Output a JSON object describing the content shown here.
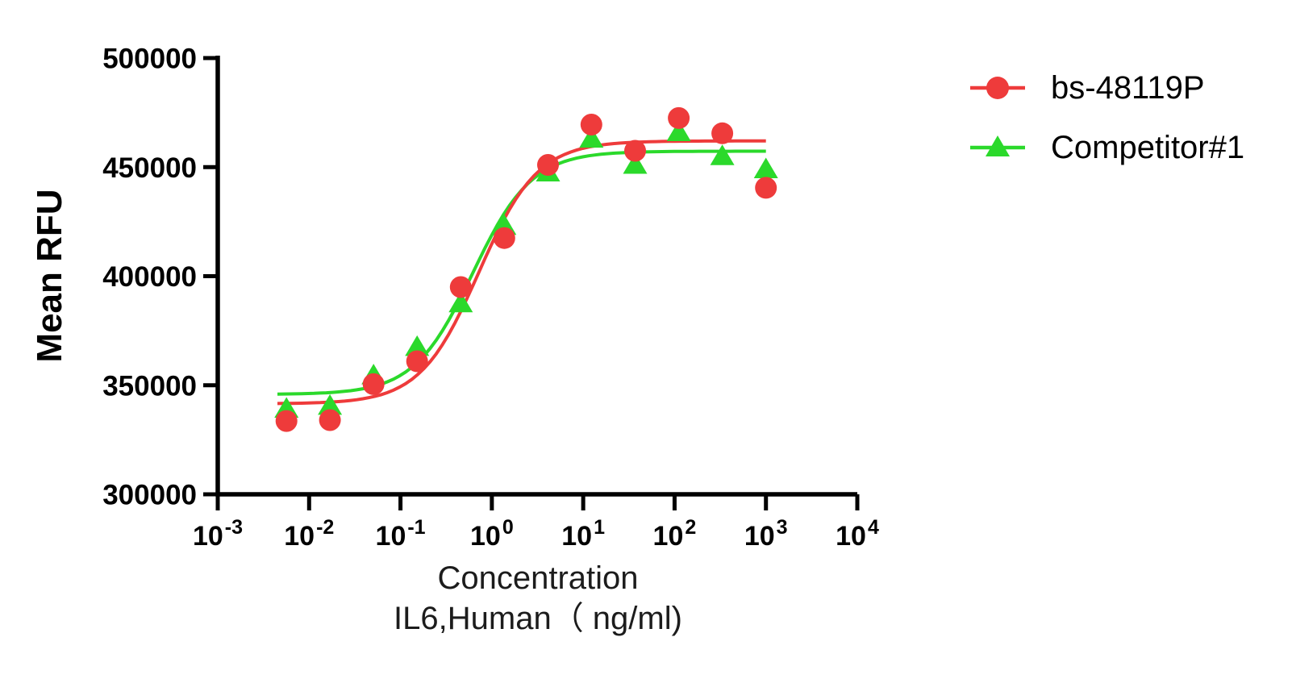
{
  "chart_data": {
    "type": "scatter",
    "title": "",
    "xlabel_line1": "Concentration",
    "xlabel_line2": "IL6,Human（ ng/ml)",
    "ylabel": "Mean RFU",
    "x_scale": "log10",
    "x_tick_exponents": [
      -3,
      -2,
      -1,
      0,
      1,
      2,
      3,
      4
    ],
    "y_ticks": [
      500000,
      450000,
      400000,
      350000,
      300000
    ],
    "ylim": [
      300000,
      500000
    ],
    "axis_color": "#000000",
    "grid": false,
    "legend_position": "right-top",
    "series": [
      {
        "name": "bs-48119P",
        "color": "#EE3B3B",
        "marker": "circle",
        "x": [
          0.00565,
          0.0169,
          0.0508,
          0.152,
          0.457,
          1.37,
          4.12,
          12.3,
          37,
          111,
          333,
          1000
        ],
        "y": [
          333600,
          334000,
          350500,
          361000,
          395000,
          417500,
          451000,
          469500,
          457500,
          472500,
          465500,
          440500
        ],
        "fit": {
          "bottom": 341500,
          "top": 462000,
          "ec50": 0.72,
          "hill": 1.35,
          "draw_from": 0.0045,
          "draw_to": 1000
        }
      },
      {
        "name": "Competitor#1",
        "color": "#2BD92B",
        "marker": "triangle",
        "x": [
          0.00565,
          0.0169,
          0.0508,
          0.152,
          0.457,
          1.37,
          4.12,
          12.3,
          37,
          111,
          333,
          1000
        ],
        "y": [
          339200,
          340500,
          354500,
          367500,
          387500,
          423000,
          447500,
          463000,
          451000,
          466000,
          455000,
          449000
        ],
        "fit": {
          "bottom": 345800,
          "top": 457300,
          "ec50": 0.62,
          "hill": 1.35,
          "draw_from": 0.0045,
          "draw_to": 1000
        }
      }
    ]
  }
}
